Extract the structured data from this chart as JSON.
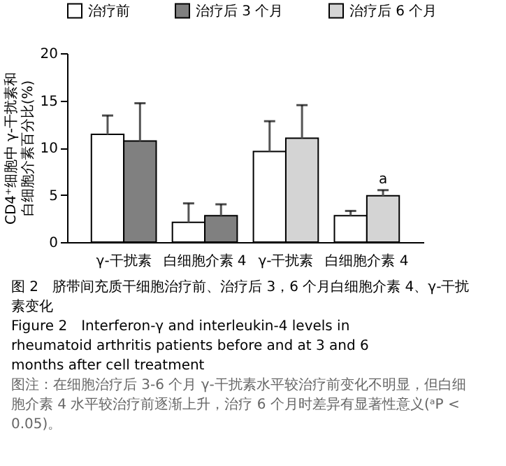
{
  "chart_data": {
    "type": "bar",
    "title": "图 2　脐带间充质干细胞治疗前、治疗后 3，6 个月白细胞介素 4、γ-干扰素变化",
    "subtitle": "Figure 2　Interferon-γ and interleukin-4 levels in rheumatoid arthritis patients before and at 3 and 6 months after cell treatment",
    "ylabel": "CD4⁺细胞中 γ-干扰素和白细胞介素百分比(%)",
    "categories": [
      "γ-干扰素",
      "白细胞介素 4",
      "γ-干扰素",
      "白细胞介素 4"
    ],
    "series": [
      {
        "name": "治疗前",
        "color": "#ffffff",
        "values": [
          11.4,
          2.1,
          9.6,
          2.8
        ],
        "errors": [
          2.0,
          2.0,
          3.2,
          0.5
        ]
      },
      {
        "name": "治疗后 3 个月",
        "color": "#808080",
        "values": [
          10.7,
          2.8,
          null,
          null
        ],
        "errors": [
          4.0,
          1.2,
          null,
          null
        ]
      },
      {
        "name": "治疗后 6 个月",
        "color": "#d4d4d4",
        "values": [
          null,
          null,
          11.0,
          4.9
        ],
        "errors": [
          null,
          null,
          3.5,
          0.6
        ],
        "value_labels": [
          null,
          null,
          null,
          "a"
        ]
      }
    ],
    "ylim": [
      0,
      20
    ],
    "yticks": [
      0,
      5,
      10,
      15,
      20
    ],
    "grid": false,
    "legend": "top",
    "annotations": [
      "图注：在细胞治疗后 3-6 个月 γ-干扰素水平较治疗前变化不明显，但白细胞介素 4 水平较治疗前逐渐上升，治疗 6 个月时差异有显著性意义(ᵃP < 0.05)。"
    ]
  }
}
